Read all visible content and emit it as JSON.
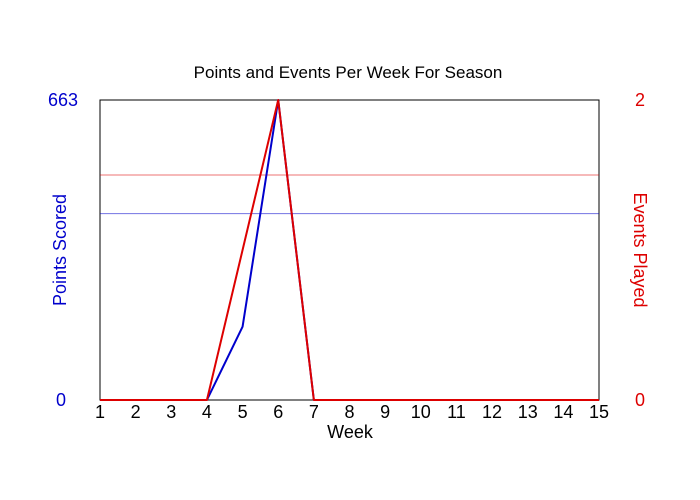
{
  "chart_data": {
    "type": "line",
    "title": "Points and Events Per Week For Season",
    "xlabel": "Week",
    "x": [
      1,
      2,
      3,
      4,
      5,
      6,
      7,
      8,
      9,
      10,
      11,
      12,
      13,
      14,
      15
    ],
    "xlim": [
      1,
      15
    ],
    "y_left": {
      "label": "Points Scored",
      "range": [
        0,
        663
      ],
      "ticks": [
        "0",
        "663"
      ],
      "color": "#0000cc"
    },
    "y_right": {
      "label": "Events Played",
      "range": [
        0,
        2
      ],
      "ticks": [
        "0",
        "2"
      ],
      "color": "#dd0000"
    },
    "series": [
      {
        "axis": "left",
        "color": "#0000cc",
        "values": [
          0,
          0,
          0,
          0,
          162,
          663,
          0,
          0,
          0,
          0,
          0,
          0,
          0,
          0,
          0
        ],
        "average": 412
      },
      {
        "axis": "right",
        "color": "#dd0000",
        "values": [
          0,
          0,
          0,
          0,
          1,
          2,
          0,
          0,
          0,
          0,
          0,
          0,
          0,
          0,
          0
        ],
        "average": 1.5
      }
    ],
    "grid": false
  }
}
